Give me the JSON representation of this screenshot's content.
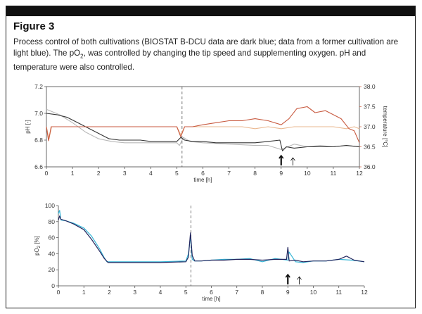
{
  "figure": {
    "title": "Figure 3",
    "caption_before_sub": "Process control of both cultivations (BIOSTAT B-DCU data are dark blue; data from a former cultivation are light blue). The pO",
    "caption_sub": "2",
    "caption_after_sub": ", was controlled by changing the tip speed and supplementing oxygen. pH and temperature were also controlled."
  },
  "colors": {
    "dark_blue": "#23265e",
    "light_blue": "#35b5d6",
    "ph_current": "#333333",
    "ph_former": "#b8b8b8",
    "temp_current": "#c85a40",
    "temp_former": "#eab890",
    "right_axis": "#d05a3a"
  },
  "chart_data": [
    {
      "type": "line",
      "xlabel": "time [h]",
      "ylabel": "pH [-]",
      "ylabel_right": "temperature [°C]",
      "xlim": [
        0,
        12
      ],
      "ylim": [
        6.6,
        7.2
      ],
      "ylim_right": [
        36.0,
        38.0
      ],
      "x_ticks": [
        "0",
        "1",
        "2",
        "3",
        "4",
        "5",
        "6",
        "7",
        "8",
        "9",
        "10",
        "11",
        "12"
      ],
      "y_ticks": [
        "6.6",
        "6.8",
        "7.0",
        "7.2"
      ],
      "y_ticks_right": [
        "36.0",
        "36.5",
        "37.0",
        "37.5",
        "38.0"
      ],
      "vline_x": 5.2,
      "markers": [
        {
          "x": 9.0,
          "symbol": "arrow"
        },
        {
          "x": 9.45,
          "symbol": "thin-arrow"
        }
      ],
      "series": [
        {
          "key": "ph_former",
          "axis": "left",
          "x": [
            0,
            0.5,
            1,
            1.5,
            2,
            2.5,
            3,
            3.5,
            4,
            4.5,
            5,
            5.1,
            5.25,
            5.5,
            6,
            7,
            8,
            8.5,
            9,
            9.5,
            10,
            10.5,
            11,
            11.5,
            12
          ],
          "y": [
            7.03,
            6.99,
            6.93,
            6.86,
            6.81,
            6.79,
            6.78,
            6.78,
            6.78,
            6.78,
            6.78,
            6.76,
            6.82,
            6.79,
            6.78,
            6.77,
            6.76,
            6.76,
            6.73,
            6.77,
            6.75,
            6.76,
            6.75,
            6.76,
            6.75
          ]
        },
        {
          "key": "ph_current",
          "axis": "left",
          "x": [
            0,
            0.4,
            0.8,
            1.2,
            1.6,
            2,
            2.4,
            2.8,
            3.2,
            3.6,
            4,
            4.5,
            5,
            5.15,
            5.3,
            5.6,
            6,
            6.5,
            7,
            7.5,
            8,
            8.5,
            8.95,
            9.05,
            9.2,
            9.5,
            10,
            10.5,
            11,
            11.5,
            12
          ],
          "y": [
            7.0,
            6.99,
            6.97,
            6.93,
            6.89,
            6.85,
            6.81,
            6.8,
            6.8,
            6.8,
            6.79,
            6.79,
            6.79,
            6.82,
            6.8,
            6.79,
            6.79,
            6.78,
            6.78,
            6.78,
            6.78,
            6.79,
            6.8,
            6.72,
            6.75,
            6.74,
            6.75,
            6.75,
            6.75,
            6.76,
            6.75
          ]
        },
        {
          "key": "temp_former",
          "axis": "right",
          "x": [
            0,
            0.1,
            0.2,
            0.5,
            1,
            2,
            3,
            4,
            5,
            5.15,
            5.3,
            5.5,
            6,
            7,
            7.5,
            8,
            8.5,
            9,
            9.5,
            10,
            10.5,
            11,
            11.5,
            11.8,
            12
          ],
          "y": [
            37.0,
            36.7,
            37.0,
            37.0,
            37.0,
            37.0,
            37.0,
            37.0,
            37.0,
            36.8,
            37.0,
            37.0,
            37.0,
            37.0,
            37.0,
            36.95,
            37.0,
            36.95,
            37.0,
            37.0,
            37.0,
            37.0,
            36.95,
            37.0,
            36.95
          ]
        },
        {
          "key": "temp_current",
          "axis": "right",
          "x": [
            0,
            0.08,
            0.18,
            0.5,
            1,
            2,
            3,
            4,
            5,
            5.15,
            5.3,
            5.6,
            6,
            6.5,
            7,
            7.5,
            8,
            8.5,
            9,
            9.3,
            9.6,
            10,
            10.3,
            10.7,
            11,
            11.3,
            11.6,
            11.8,
            12
          ],
          "y": [
            37.0,
            36.65,
            37.0,
            37.0,
            37.0,
            37.0,
            37.0,
            37.0,
            37.0,
            36.75,
            37.0,
            37.0,
            37.05,
            37.1,
            37.15,
            37.15,
            37.2,
            37.15,
            37.05,
            37.2,
            37.45,
            37.5,
            37.35,
            37.4,
            37.3,
            37.2,
            36.95,
            36.9,
            36.6
          ]
        }
      ]
    },
    {
      "type": "line",
      "xlabel": "time [h]",
      "ylabel_parts": [
        "pO",
        "2",
        " [%]"
      ],
      "xlim": [
        0,
        12
      ],
      "ylim": [
        0,
        100
      ],
      "x_ticks": [
        "0",
        "1",
        "2",
        "3",
        "4",
        "5",
        "6",
        "7",
        "8",
        "9",
        "10",
        "11",
        "12"
      ],
      "y_ticks": [
        "0",
        "20",
        "40",
        "60",
        "80",
        "100"
      ],
      "vline_x": 5.2,
      "markers": [
        {
          "x": 9.0,
          "symbol": "arrow"
        },
        {
          "x": 9.45,
          "symbol": "thin-arrow"
        }
      ],
      "series": [
        {
          "key": "light_blue",
          "x": [
            0,
            0.05,
            0.1,
            0.3,
            0.6,
            1,
            1.3,
            1.6,
            1.8,
            1.9,
            2,
            2.5,
            3,
            4,
            5,
            5.1,
            5.18,
            5.25,
            5.35,
            5.6,
            6,
            6.5,
            7,
            7.5,
            8,
            8.5,
            9,
            9.05,
            9.3,
            9.6,
            10,
            10.5,
            11,
            11.5,
            12
          ],
          "y": [
            90,
            94,
            82,
            81,
            78,
            72,
            62,
            47,
            35,
            30,
            30,
            30,
            30,
            30,
            31,
            40,
            62,
            33,
            31,
            31,
            32,
            33,
            33,
            34,
            30,
            34,
            32,
            42,
            30,
            29,
            31,
            31,
            33,
            32,
            30
          ]
        },
        {
          "key": "dark_blue",
          "x": [
            0,
            0.05,
            0.1,
            0.3,
            0.6,
            1,
            1.3,
            1.6,
            1.8,
            1.95,
            2.1,
            2.5,
            3,
            4,
            5,
            5.1,
            5.18,
            5.25,
            5.35,
            5.6,
            6,
            6.5,
            7,
            7.5,
            8,
            8.5,
            8.95,
            9.0,
            9.05,
            9.3,
            9.6,
            10,
            10.5,
            11,
            11.3,
            11.6,
            12
          ],
          "y": [
            82,
            87,
            83,
            81,
            77,
            70,
            58,
            44,
            34,
            29,
            29,
            29,
            29,
            29,
            30,
            36,
            66,
            38,
            31,
            31,
            32,
            32,
            33,
            33,
            32,
            33,
            33,
            48,
            31,
            32,
            30,
            31,
            31,
            33,
            37,
            32,
            30
          ]
        }
      ]
    }
  ]
}
